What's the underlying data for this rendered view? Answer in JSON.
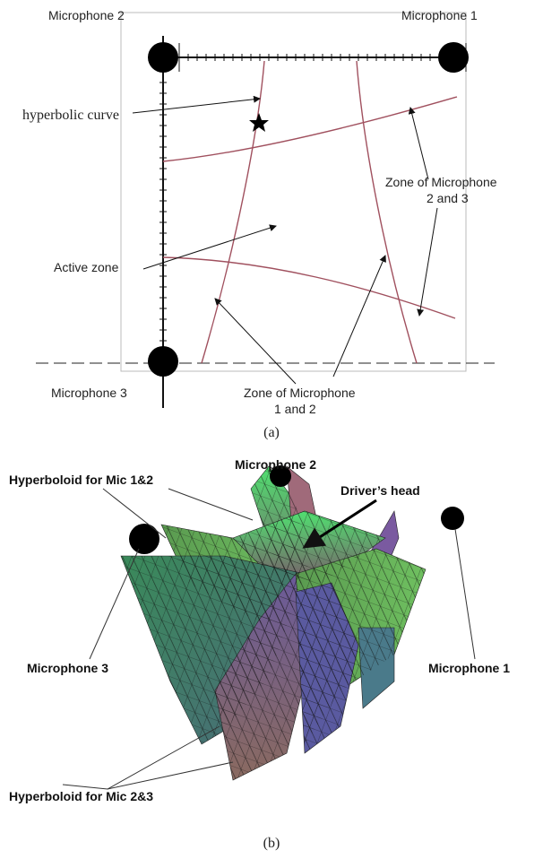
{
  "figure_a": {
    "mic2": "Microphone 2",
    "mic1": "Microphone 1",
    "mic3": "Microphone 3",
    "hyperbolic_curve": "hyperbolic curve",
    "zone_23": [
      "Zone of Microphone",
      "2 and 3"
    ],
    "active_zone": "Active zone",
    "zone_12": [
      "Zone of Microphone",
      "1 and 2"
    ],
    "caption": "(a)"
  },
  "figure_b": {
    "hyperboloid_12": "Hyperboloid for Mic 1&2",
    "mic2": "Microphone 2",
    "drivers_head": "Driver’s head",
    "mic3": "Microphone 3",
    "mic1": "Microphone 1",
    "hyperboloid_23": "Hyperboloid for Mic 2&3",
    "caption": "(b)"
  }
}
